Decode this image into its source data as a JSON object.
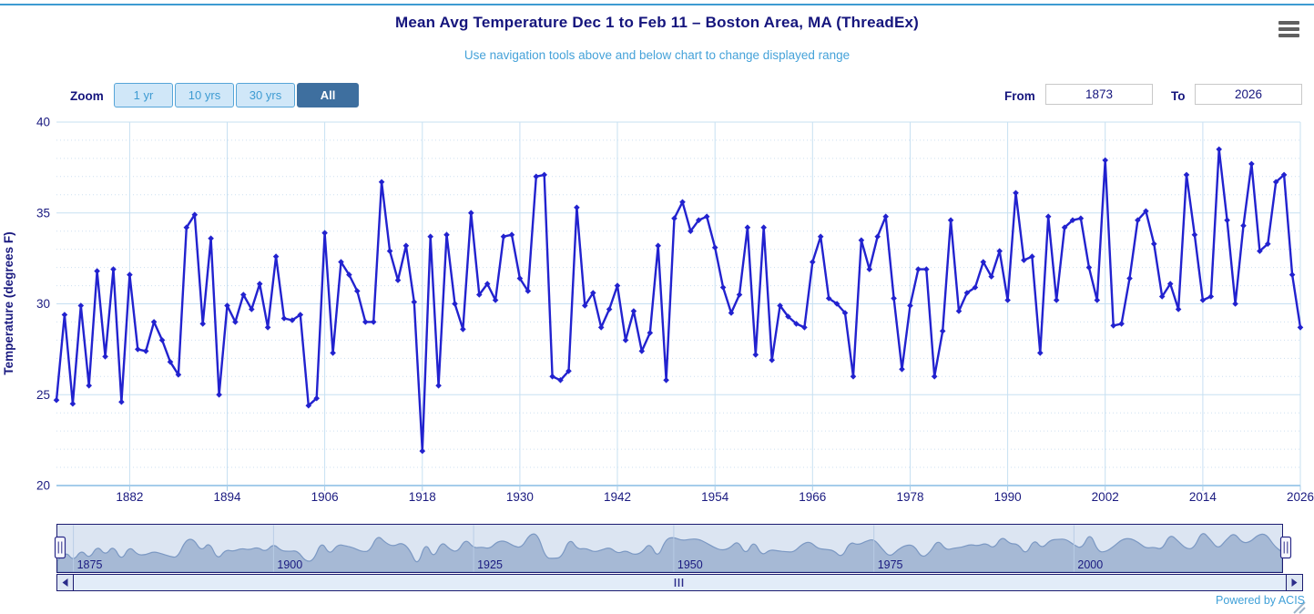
{
  "header": {
    "title": "Mean Avg Temperature Dec 1 to Feb 11 – Boston Area, MA (ThreadEx)",
    "subtitle": "Use navigation tools above and below chart to change displayed range"
  },
  "range_selector": {
    "zoom_label": "Zoom",
    "buttons": [
      {
        "label": "1 yr",
        "selected": false
      },
      {
        "label": "10 yrs",
        "selected": false
      },
      {
        "label": "30 yrs",
        "selected": false
      },
      {
        "label": "All",
        "selected": true
      }
    ],
    "from_label": "From",
    "from_value": "1873",
    "to_label": "To",
    "to_value": "2026"
  },
  "chart_data": {
    "type": "line",
    "title": "Mean Avg Temperature Dec 1 to Feb 11 – Boston Area, MA (ThreadEx)",
    "subtitle": "Use navigation tools above and below chart to change displayed range",
    "xlabel": "",
    "ylabel": "Temperature (degrees F)",
    "ylim": [
      20,
      40
    ],
    "y_ticks": [
      20,
      25,
      30,
      35,
      40
    ],
    "y_minor_step": 1,
    "x_ticks": [
      1882,
      1894,
      1906,
      1918,
      1930,
      1942,
      1954,
      1966,
      1978,
      1990,
      2002,
      2014,
      2026
    ],
    "x_start": 1873,
    "x_end": 2026,
    "grid": true,
    "legend": false,
    "marker": "diamond",
    "series": [
      {
        "name": "Mean Avg Temperature (degrees F)",
        "values": [
          24.7,
          29.4,
          24.5,
          29.9,
          25.5,
          31.8,
          27.1,
          31.9,
          24.6,
          31.6,
          27.5,
          27.4,
          29.0,
          28.0,
          26.8,
          26.1,
          34.2,
          34.9,
          28.9,
          33.6,
          25.0,
          29.9,
          29.0,
          30.5,
          29.7,
          31.1,
          28.7,
          32.6,
          29.2,
          29.1,
          29.4,
          24.4,
          24.8,
          33.9,
          27.3,
          32.3,
          31.6,
          30.7,
          29.0,
          29.0,
          36.7,
          32.9,
          31.3,
          33.2,
          30.1,
          21.9,
          33.7,
          25.5,
          33.8,
          30.0,
          28.6,
          35.0,
          30.5,
          31.1,
          30.2,
          33.7,
          33.8,
          31.4,
          30.7,
          37.0,
          37.1,
          26.0,
          25.8,
          26.3,
          35.3,
          29.9,
          30.6,
          28.7,
          29.7,
          31.0,
          28.0,
          29.6,
          27.4,
          28.4,
          33.2,
          25.8,
          34.7,
          35.6,
          34.0,
          34.6,
          34.8,
          33.1,
          30.9,
          29.5,
          30.5,
          34.2,
          27.2,
          34.2,
          26.9,
          29.9,
          29.3,
          28.9,
          28.7,
          32.3,
          33.7,
          30.3,
          30.0,
          29.5,
          26.0,
          33.5,
          31.9,
          33.7,
          34.8,
          30.3,
          26.4,
          29.9,
          31.9,
          31.9,
          26.0,
          28.5,
          34.6,
          29.6,
          30.6,
          30.9,
          32.3,
          31.5,
          32.9,
          30.2,
          36.1,
          32.4,
          32.6,
          27.3,
          34.8,
          30.2,
          34.2,
          34.6,
          34.7,
          32.0,
          30.2,
          37.9,
          28.8,
          28.9,
          31.4,
          34.6,
          35.1,
          33.3,
          30.4,
          31.1,
          29.7,
          37.1,
          33.8,
          30.2,
          30.4,
          38.5,
          34.6,
          30.0,
          34.3,
          37.7,
          32.9,
          33.3,
          36.7,
          37.1,
          31.6,
          28.7
        ]
      }
    ]
  },
  "navigator": {
    "x_ticks": [
      1875,
      1900,
      1925,
      1950,
      1975,
      2000
    ]
  },
  "scrollbar": {
    "grip": "III",
    "left_arrow": "left-triangle",
    "right_arrow": "right-triangle"
  },
  "footer": {
    "powered_by": "Powered by ACIS"
  },
  "colors": {
    "title_text": "#15157d",
    "subtitle_text": "#45a2d9",
    "axis_text": "#1a1a80",
    "series_line": "#2222cf",
    "major_grid": "#c7e0f2",
    "minor_grid": "#cddff0",
    "axis_line": "#a5cdeb",
    "top_rule": "#3d9bd2",
    "button_bg": "#d0e7f8",
    "button_border": "#56a5d8",
    "button_text": "#3e9bd2",
    "button_active_bg": "#3e6f9f",
    "navigator_border": "#1b1b70",
    "navigator_bg": "#dce5f2",
    "navigator_area_fill": "#a6b9d5",
    "navigator_area_line": "#7b98c3",
    "navigator_grid": "#b9cde6",
    "scrollbar_track": "#e9f1fa",
    "scrollbar_thumb": "#e2ecf8",
    "scrollbar_button": "#dde6f3",
    "scrollbar_icon": "#2b2b8a",
    "handle_fill": "#f7f7fc",
    "powered_text": "#3fa0d8",
    "menu_icon": "#606060",
    "resize_grip": "#9fb6cb"
  }
}
